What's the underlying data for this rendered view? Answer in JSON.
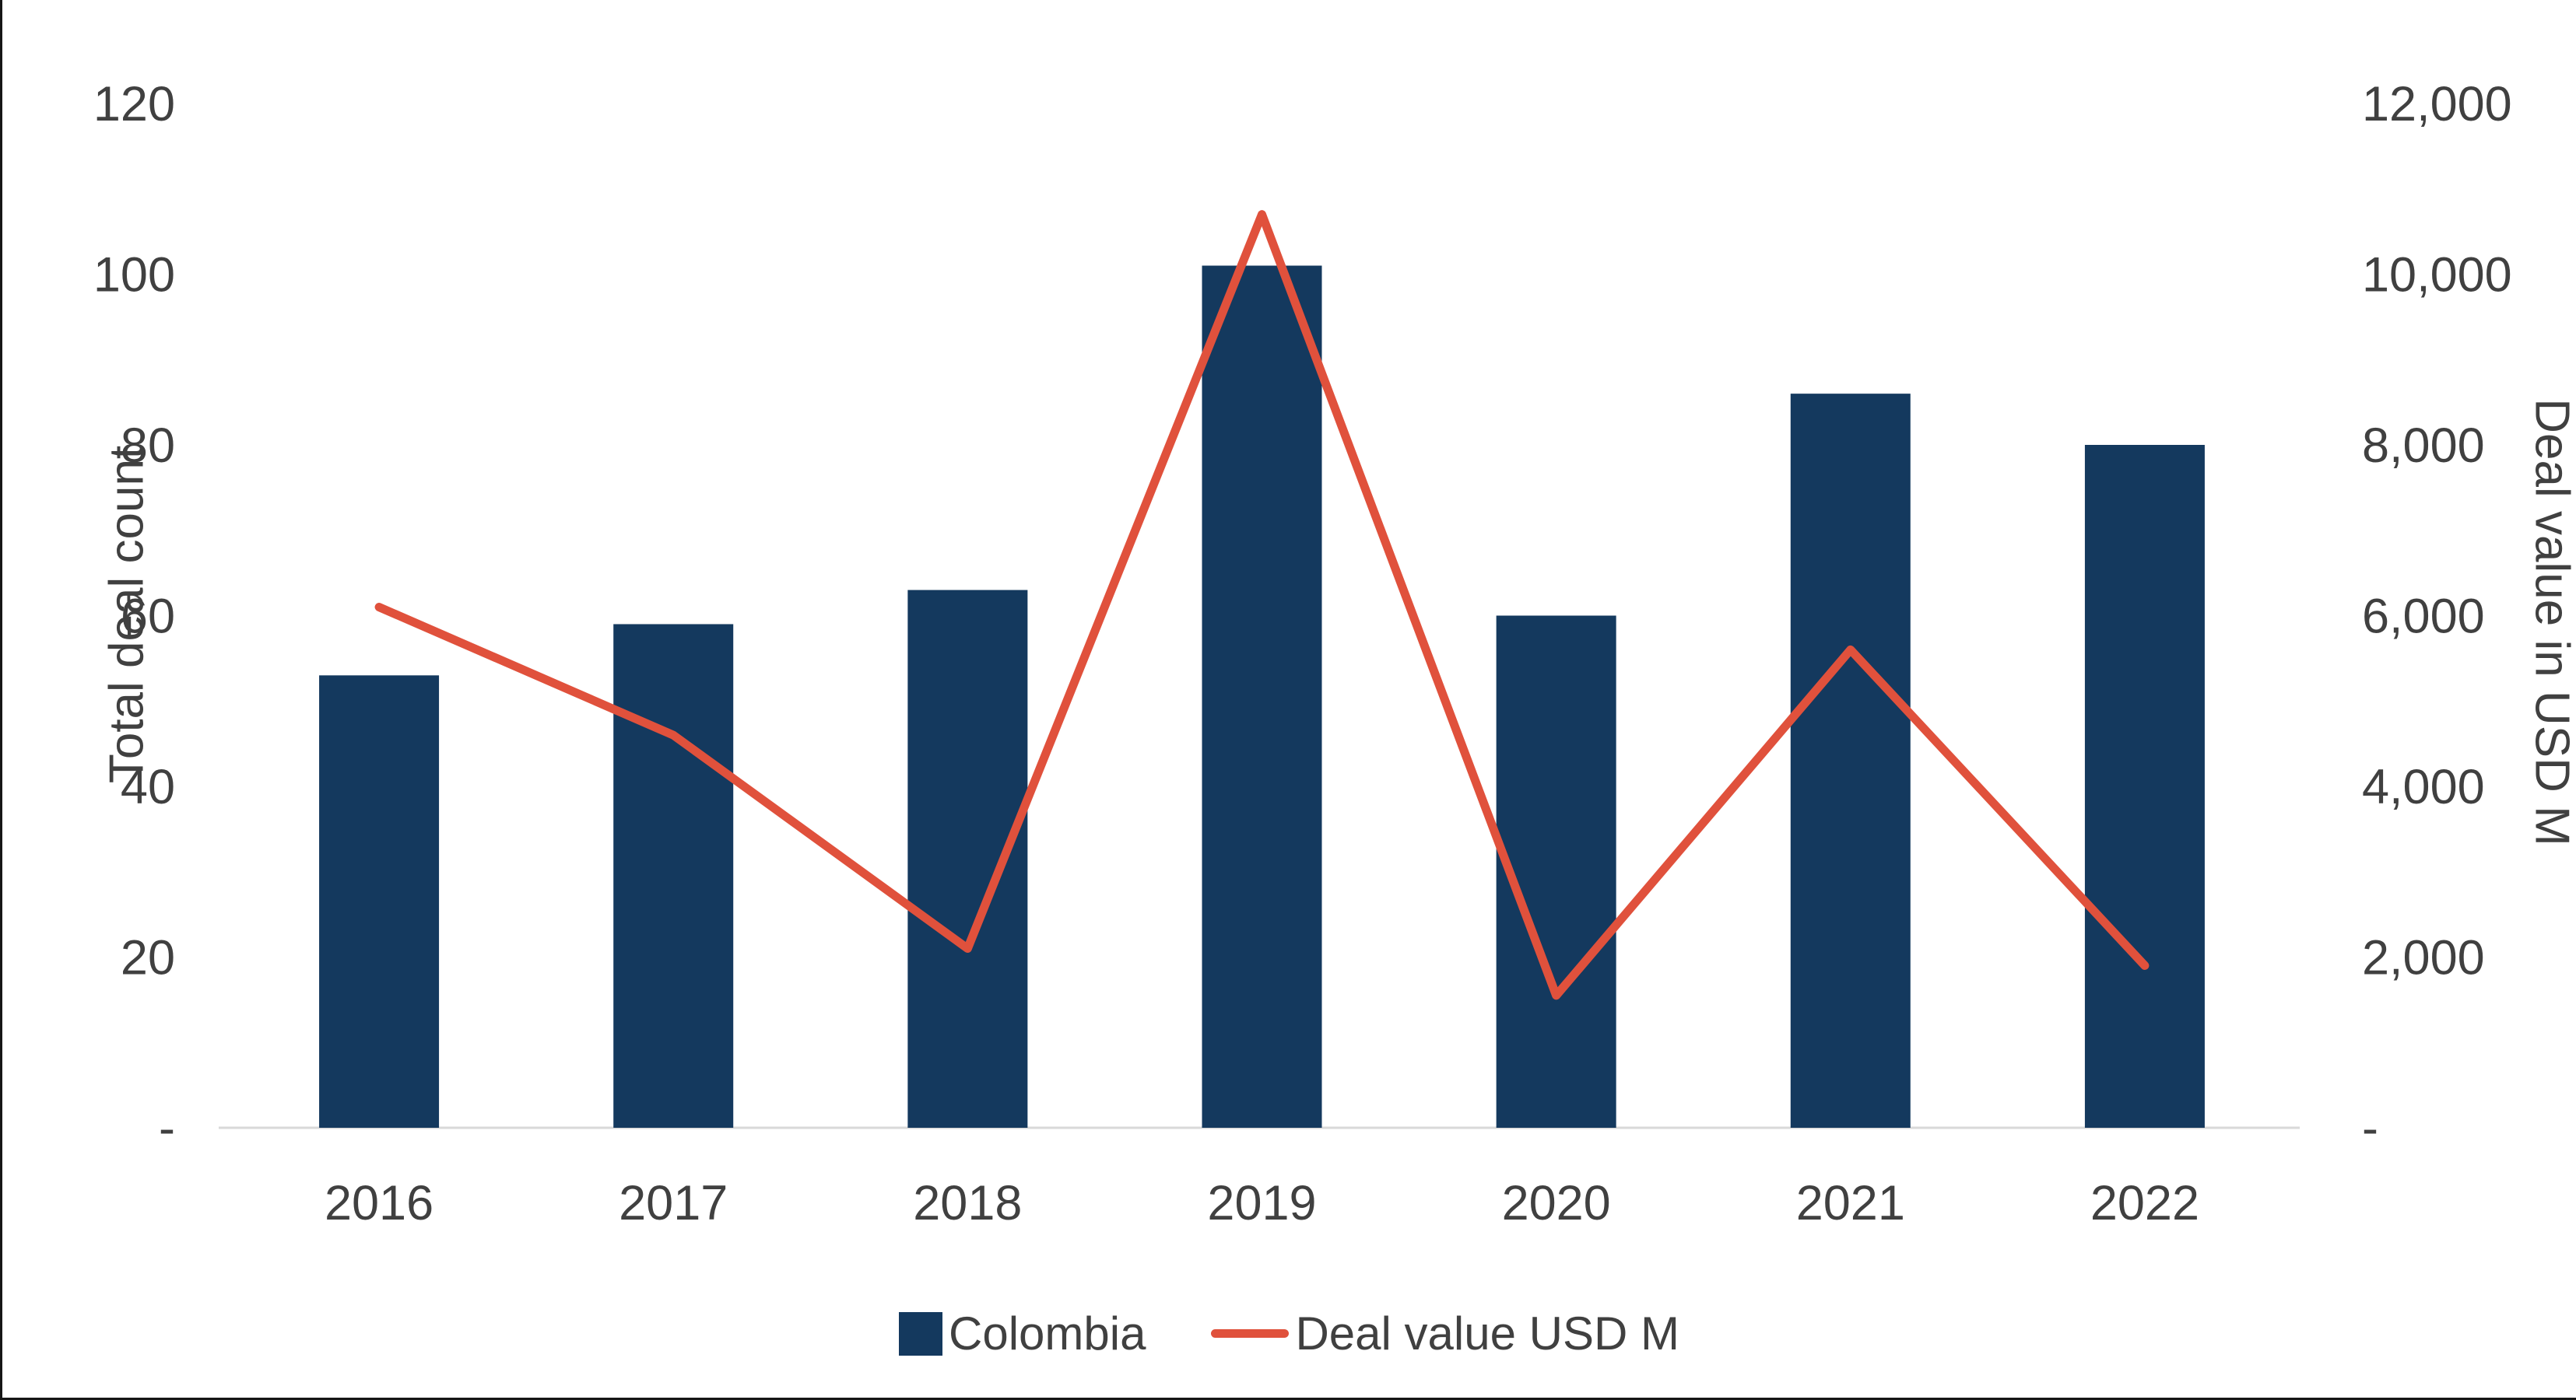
{
  "chart_data": {
    "type": "combo",
    "categories": [
      "2016",
      "2017",
      "2018",
      "2019",
      "2020",
      "2021",
      "2022"
    ],
    "series": [
      {
        "name": "Colombia",
        "type": "bar",
        "axis": "left",
        "color": "#14395E",
        "values": [
          53,
          59,
          63,
          101,
          60,
          86,
          80
        ]
      },
      {
        "name": "Deal value USD M",
        "type": "line",
        "axis": "right",
        "color": "#E0513C",
        "values": [
          6100,
          4600,
          2100,
          10700,
          1550,
          5600,
          1900
        ]
      }
    ],
    "left_axis": {
      "title": "Total deal count",
      "min": 0,
      "max": 120,
      "tick_step": 20,
      "tick_labels": [
        "-",
        "20",
        "40",
        "60",
        "80",
        "100",
        "120"
      ]
    },
    "right_axis": {
      "title": "Deal value in USD M",
      "min": 0,
      "max": 12000,
      "tick_step": 2000,
      "tick_labels": [
        "-",
        "2,000",
        "4,000",
        "6,000",
        "8,000",
        "10,000",
        "12,000"
      ]
    },
    "legend": [
      {
        "label": "Colombia",
        "swatch": "square",
        "color": "#14395E"
      },
      {
        "label": "Deal value USD M",
        "swatch": "line",
        "color": "#E0513C"
      }
    ],
    "grid": false,
    "baseline_color": "#D9D9D9",
    "text_color": "#404040"
  }
}
